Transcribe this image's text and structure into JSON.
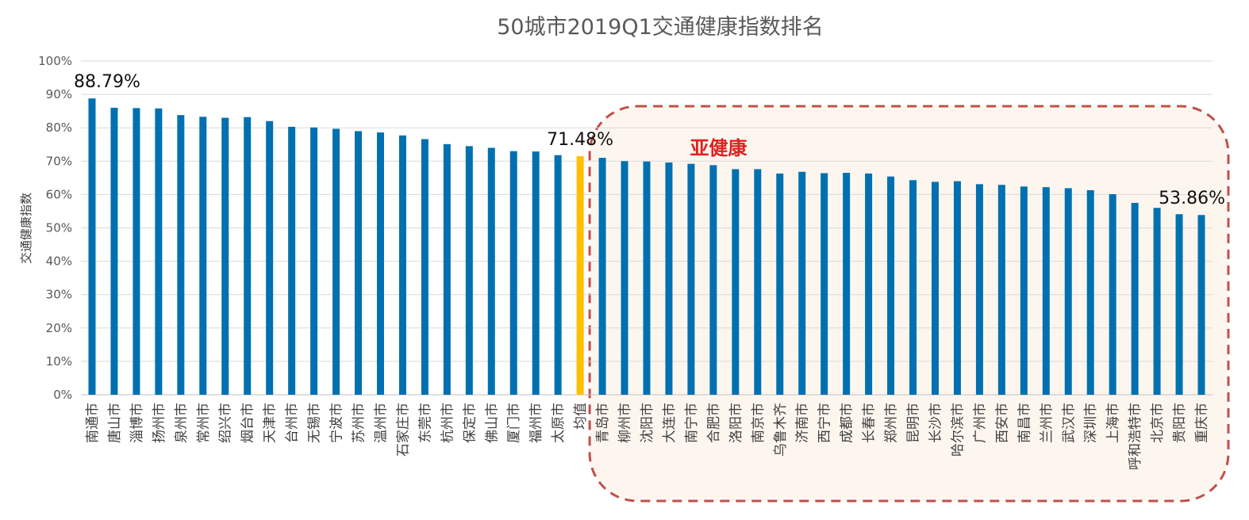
{
  "chart_data": {
    "type": "bar",
    "title": "50城市2019Q1交通健康指数排名",
    "xlabel": "",
    "ylabel": "交通健康指数",
    "ylim": [
      0,
      1
    ],
    "yticks": [
      "0%",
      "10%",
      "20%",
      "30%",
      "40%",
      "50%",
      "60%",
      "70%",
      "80%",
      "90%",
      "100%"
    ],
    "grid": true,
    "legend": "none",
    "categories": [
      "南通市",
      "唐山市",
      "淄博市",
      "扬州市",
      "泉州市",
      "常州市",
      "绍兴市",
      "烟台市",
      "天津市",
      "台州市",
      "无锡市",
      "宁波市",
      "苏州市",
      "温州市",
      "石家庄市",
      "东莞市",
      "杭州市",
      "保定市",
      "佛山市",
      "厦门市",
      "福州市",
      "太原市",
      "均值",
      "青岛市",
      "柳州市",
      "沈阳市",
      "大连市",
      "南宁市",
      "合肥市",
      "洛阳市",
      "南京市",
      "乌鲁木齐",
      "济南市",
      "西宁市",
      "成都市",
      "长春市",
      "郑州市",
      "昆明市",
      "长沙市",
      "哈尔滨市",
      "广州市",
      "西安市",
      "南昌市",
      "兰州市",
      "武汉市",
      "深圳市",
      "上海市",
      "呼和浩特市",
      "北京市",
      "贵阳市",
      "重庆市"
    ],
    "values": [
      0.8879,
      0.86,
      0.859,
      0.858,
      0.838,
      0.833,
      0.83,
      0.832,
      0.82,
      0.803,
      0.801,
      0.797,
      0.79,
      0.786,
      0.777,
      0.766,
      0.751,
      0.745,
      0.74,
      0.73,
      0.729,
      0.718,
      0.7148,
      0.71,
      0.7,
      0.699,
      0.696,
      0.692,
      0.688,
      0.676,
      0.676,
      0.663,
      0.668,
      0.664,
      0.665,
      0.663,
      0.654,
      0.643,
      0.638,
      0.64,
      0.631,
      0.629,
      0.624,
      0.622,
      0.619,
      0.613,
      0.601,
      0.575,
      0.56,
      0.541,
      0.5386
    ],
    "highlight_category": "均值",
    "bar_color": "#0070B0",
    "highlight_color": "#FFC000",
    "data_labels": [
      {
        "category": "南通市",
        "text": "88.79%"
      },
      {
        "category": "均值",
        "text": "71.48%"
      },
      {
        "category": "重庆市",
        "text": "53.86%"
      }
    ],
    "annotation": {
      "text": "亚健康",
      "color": "#E02020",
      "border_color": "#C0504D",
      "fill_color": "#FDF6EF",
      "from_category": "青岛市",
      "to_category": "重庆市"
    }
  }
}
